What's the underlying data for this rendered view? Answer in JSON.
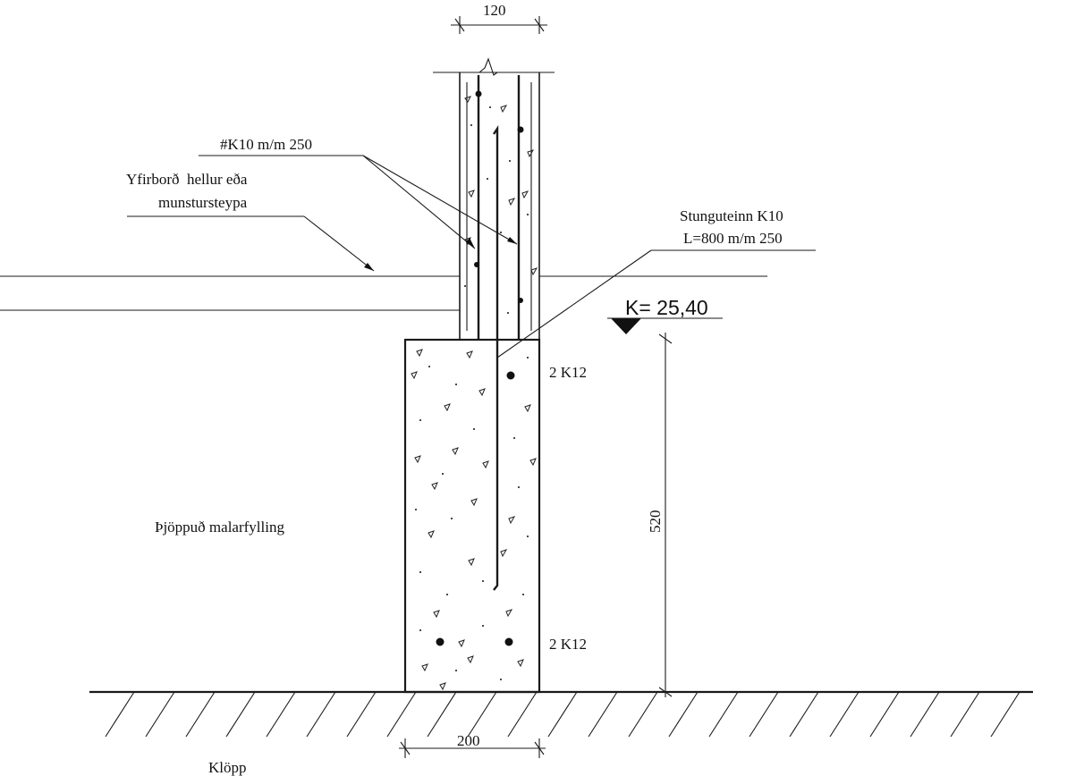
{
  "labels": {
    "rebar_mesh": "#K10 m/m 250",
    "surface_line1": "Yfirborð  hellur eða",
    "surface_line2": "munstursteypa",
    "dowel_line1": "Stunguteinn K10",
    "dowel_line2": "L=800 m/m 250",
    "bars_top": "2 K12",
    "bars_bottom": "2 K12",
    "fill": "Þjöppuð malarfylling",
    "bedrock": "Klöpp"
  },
  "dimensions": {
    "wall_width": "120",
    "footing_width": "200",
    "footing_height": "520"
  },
  "level": {
    "text": "K= 25,40"
  }
}
